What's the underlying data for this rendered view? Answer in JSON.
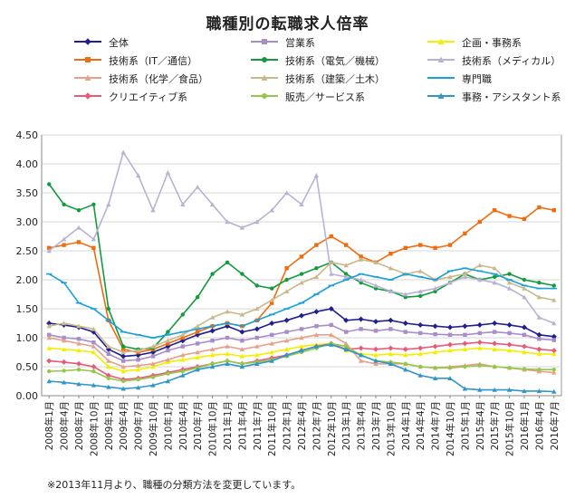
{
  "chart_data": {
    "type": "line",
    "title": "職種別の転職求人倍率",
    "note": "※2013年11月より、職種の分類方法を変更しています。",
    "ylim": [
      0,
      4.5
    ],
    "yticks": [
      "0.00",
      "0.50",
      "1.00",
      "1.50",
      "2.00",
      "2.50",
      "3.00",
      "3.50",
      "4.00",
      "4.50"
    ],
    "categories": [
      "2008年1月",
      "2008年4月",
      "2008年7月",
      "2008年10月",
      "2009年1月",
      "2009年4月",
      "2009年7月",
      "2009年10月",
      "2010年1月",
      "2010年4月",
      "2010年7月",
      "2010年10月",
      "2011年1月",
      "2011年4月",
      "2011年7月",
      "2011年10月",
      "2012年1月",
      "2012年4月",
      "2012年7月",
      "2012年10月",
      "2013年1月",
      "2013年4月",
      "2013年7月",
      "2013年10月",
      "2014年1月",
      "2014年4月",
      "2014年7月",
      "2014年10月",
      "2015年1月",
      "2015年4月",
      "2015年7月",
      "2015年10月",
      "2016年1月",
      "2016年4月",
      "2016年7月"
    ],
    "series": [
      {
        "name": "全体",
        "color": "#1f1f8f",
        "marker": "diamond",
        "values": [
          1.25,
          1.22,
          1.18,
          1.1,
          0.8,
          0.68,
          0.7,
          0.75,
          0.85,
          0.95,
          1.05,
          1.12,
          1.2,
          1.1,
          1.15,
          1.25,
          1.3,
          1.38,
          1.45,
          1.5,
          1.3,
          1.32,
          1.28,
          1.3,
          1.25,
          1.22,
          1.2,
          1.18,
          1.2,
          1.22,
          1.25,
          1.22,
          1.18,
          1.05,
          1.02
        ]
      },
      {
        "name": "営業系",
        "color": "#a78ec8",
        "marker": "square",
        "values": [
          1.05,
          1.0,
          0.98,
          0.92,
          0.72,
          0.6,
          0.62,
          0.68,
          0.78,
          0.85,
          0.9,
          0.95,
          1.0,
          0.95,
          1.0,
          1.05,
          1.1,
          1.15,
          1.2,
          1.22,
          1.1,
          1.15,
          1.12,
          1.15,
          1.1,
          1.08,
          1.06,
          1.05,
          1.05,
          1.08,
          1.1,
          1.08,
          1.05,
          0.98,
          0.96
        ]
      },
      {
        "name": "企画・事務系",
        "color": "#f0f000",
        "marker": "triangle",
        "values": [
          0.82,
          0.8,
          0.78,
          0.75,
          0.5,
          0.42,
          0.45,
          0.5,
          0.58,
          0.62,
          0.66,
          0.7,
          0.72,
          0.68,
          0.7,
          0.75,
          0.8,
          0.85,
          0.88,
          0.9,
          0.78,
          0.72,
          0.7,
          0.72,
          0.7,
          0.72,
          0.75,
          0.78,
          0.8,
          0.82,
          0.8,
          0.78,
          0.75,
          0.72,
          0.72
        ]
      },
      {
        "name": "技術系（IT／通信）",
        "color": "#ee6d10",
        "marker": "square",
        "values": [
          2.55,
          2.6,
          2.65,
          2.55,
          1.3,
          0.8,
          0.75,
          0.8,
          0.9,
          1.0,
          1.1,
          1.2,
          1.25,
          1.2,
          1.3,
          1.6,
          2.2,
          2.4,
          2.6,
          2.75,
          2.6,
          2.4,
          2.3,
          2.45,
          2.55,
          2.6,
          2.55,
          2.6,
          2.8,
          3.0,
          3.2,
          3.1,
          3.05,
          3.25,
          3.2
        ]
      },
      {
        "name": "技術系（電気／機械）",
        "color": "#129a3e",
        "marker": "circle",
        "values": [
          3.65,
          3.3,
          3.2,
          3.3,
          1.5,
          0.85,
          0.8,
          0.82,
          1.1,
          1.4,
          1.7,
          2.1,
          2.3,
          2.1,
          1.9,
          1.85,
          2.0,
          2.1,
          2.2,
          2.3,
          2.1,
          1.95,
          1.85,
          1.8,
          1.7,
          1.72,
          1.8,
          1.95,
          2.1,
          2.0,
          2.05,
          2.1,
          2.0,
          1.95,
          1.9
        ]
      },
      {
        "name": "技術系（メディカル）",
        "color": "#b8b2d4",
        "marker": "triangle",
        "values": [
          2.5,
          2.7,
          2.9,
          2.7,
          3.3,
          4.2,
          3.8,
          3.2,
          3.85,
          3.3,
          3.6,
          3.3,
          3.0,
          2.9,
          3.0,
          3.2,
          3.5,
          3.3,
          3.8,
          2.1,
          2.05,
          2.0,
          1.9,
          1.8,
          1.75,
          1.8,
          1.85,
          1.95,
          2.05,
          2.0,
          1.95,
          1.85,
          1.7,
          1.35,
          1.25
        ]
      },
      {
        "name": "技術系（化学／食品）",
        "color": "#e8a08a",
        "marker": "triangle",
        "values": [
          1.0,
          0.95,
          0.9,
          0.85,
          0.6,
          0.5,
          0.52,
          0.55,
          0.62,
          0.7,
          0.75,
          0.8,
          0.85,
          0.8,
          0.85,
          0.9,
          0.95,
          1.0,
          1.05,
          1.05,
          0.9,
          0.6,
          0.55,
          0.55,
          0.55,
          0.5,
          0.48,
          0.5,
          0.52,
          0.55,
          0.5,
          0.48,
          0.45,
          0.42,
          0.4
        ]
      },
      {
        "name": "技術系（建築／土木）",
        "color": "#c9b98a",
        "marker": "triangle",
        "values": [
          1.2,
          1.25,
          1.2,
          1.15,
          0.85,
          0.75,
          0.78,
          0.85,
          0.95,
          1.05,
          1.2,
          1.35,
          1.45,
          1.4,
          1.5,
          1.65,
          1.8,
          1.95,
          2.05,
          2.3,
          2.25,
          2.35,
          2.3,
          2.2,
          2.1,
          2.15,
          2.0,
          2.05,
          2.1,
          2.25,
          2.2,
          1.95,
          1.85,
          1.7,
          1.65
        ]
      },
      {
        "name": "専門職",
        "color": "#1aa0d8",
        "marker": "dash",
        "values": [
          2.1,
          1.95,
          1.6,
          1.5,
          1.3,
          1.1,
          1.05,
          1.0,
          1.05,
          1.1,
          1.15,
          1.2,
          1.25,
          1.2,
          1.3,
          1.4,
          1.5,
          1.6,
          1.75,
          1.9,
          2.0,
          2.1,
          2.05,
          2.0,
          2.1,
          2.05,
          2.0,
          2.15,
          2.2,
          2.15,
          2.1,
          2.0,
          1.9,
          1.85,
          1.85
        ]
      },
      {
        "name": "クリエイティブ系",
        "color": "#e85a78",
        "marker": "diamond",
        "values": [
          0.6,
          0.58,
          0.55,
          0.5,
          0.35,
          0.28,
          0.3,
          0.35,
          0.4,
          0.45,
          0.5,
          0.55,
          0.6,
          0.55,
          0.6,
          0.65,
          0.7,
          0.78,
          0.85,
          0.9,
          0.8,
          0.82,
          0.8,
          0.82,
          0.8,
          0.82,
          0.85,
          0.88,
          0.9,
          0.92,
          0.9,
          0.88,
          0.85,
          0.8,
          0.78
        ]
      },
      {
        "name": "販売／サービス系",
        "color": "#95c84a",
        "marker": "circle",
        "values": [
          0.42,
          0.43,
          0.45,
          0.42,
          0.3,
          0.25,
          0.28,
          0.32,
          0.38,
          0.42,
          0.48,
          0.55,
          0.6,
          0.55,
          0.58,
          0.62,
          0.68,
          0.75,
          0.82,
          0.9,
          0.85,
          0.7,
          0.6,
          0.58,
          0.55,
          0.5,
          0.48,
          0.48,
          0.5,
          0.52,
          0.5,
          0.48,
          0.46,
          0.45,
          0.45
        ]
      },
      {
        "name": "事務・アシスタント系",
        "color": "#2f96c8",
        "marker": "triangle",
        "values": [
          0.25,
          0.23,
          0.2,
          0.18,
          0.15,
          0.12,
          0.14,
          0.18,
          0.25,
          0.35,
          0.45,
          0.5,
          0.55,
          0.5,
          0.55,
          0.6,
          0.7,
          0.78,
          0.85,
          0.88,
          0.8,
          0.7,
          0.6,
          0.55,
          0.45,
          0.35,
          0.3,
          0.3,
          0.12,
          0.1,
          0.1,
          0.1,
          0.08,
          0.08,
          0.07
        ]
      }
    ]
  }
}
